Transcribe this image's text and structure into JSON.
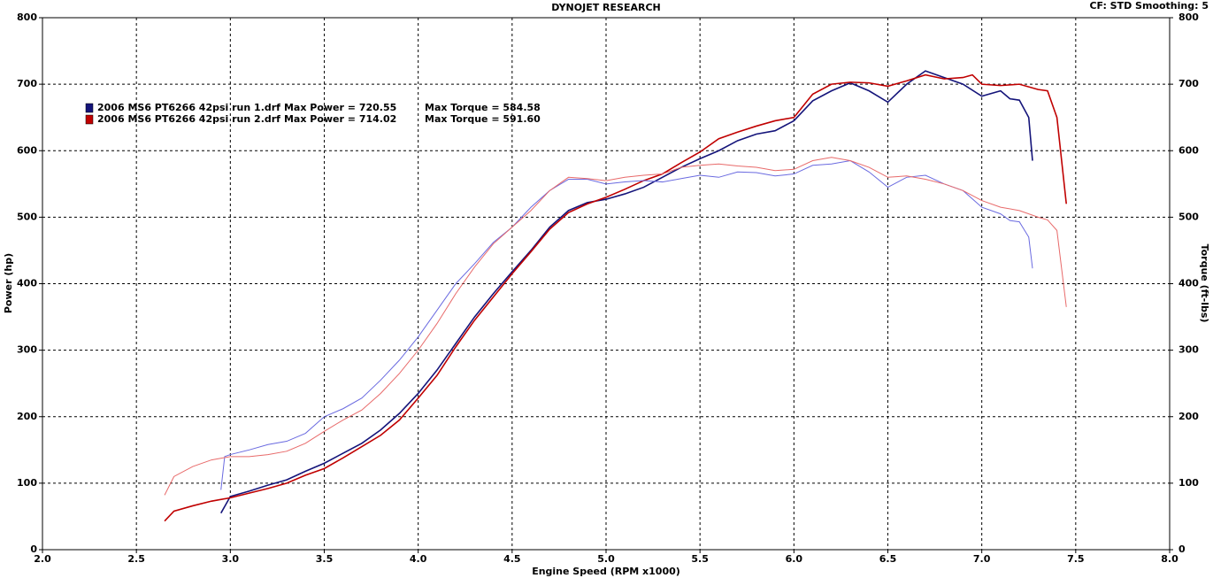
{
  "chart_data": {
    "type": "line",
    "title": "DYNOJET RESEARCH",
    "subtitle": "CF: STD  Smoothing: 5",
    "x_label": "Engine Speed (RPM x1000)",
    "y_label": "Power (hp)",
    "y2_label": "Torque (ft-lbs)",
    "xlim": [
      2,
      8
    ],
    "xticks": [
      {
        "value": 2,
        "label": "2.0"
      },
      2.5,
      {
        "value": 3,
        "label": "3.0"
      },
      3.5,
      {
        "value": 4,
        "label": "4.0"
      },
      4.5,
      {
        "value": 5,
        "label": "5.0"
      },
      5.5,
      {
        "value": 6,
        "label": "6.0"
      },
      6.5,
      {
        "value": 7,
        "label": "7.0"
      },
      7.5,
      {
        "value": 8,
        "label": "8.0"
      }
    ],
    "ylim": [
      0,
      800
    ],
    "yticks": [
      0,
      100,
      200,
      300,
      400,
      500,
      600,
      700,
      800
    ],
    "y2lim": [
      0,
      800
    ],
    "y2ticks": [
      0,
      100,
      200,
      300,
      400,
      500,
      600,
      700,
      800
    ],
    "grid": true,
    "series": [
      {
        "name": "2006 MS6 PT6266 42psi run 1.drf",
        "max_power": "Max Power = 720.55",
        "max_torque": "Max Torque = 584.58",
        "color": "#14147a",
        "x": [
          2.95,
          3.0,
          3.1,
          3.2,
          3.3,
          3.4,
          3.5,
          3.6,
          3.7,
          3.8,
          3.9,
          4.0,
          4.1,
          4.2,
          4.3,
          4.4,
          4.5,
          4.6,
          4.7,
          4.8,
          4.9,
          5.0,
          5.1,
          5.2,
          5.3,
          5.4,
          5.5,
          5.6,
          5.7,
          5.8,
          5.9,
          6.0,
          6.1,
          6.2,
          6.3,
          6.4,
          6.5,
          6.6,
          6.7,
          6.8,
          6.9,
          7.0,
          7.1,
          7.15,
          7.2,
          7.25,
          7.27
        ],
        "values": [
          55,
          80,
          88,
          97,
          105,
          118,
          130,
          145,
          160,
          180,
          205,
          235,
          270,
          310,
          350,
          385,
          418,
          450,
          485,
          510,
          522,
          527,
          535,
          545,
          560,
          575,
          588,
          600,
          615,
          625,
          630,
          645,
          675,
          690,
          702,
          690,
          673,
          700,
          720,
          710,
          700,
          682,
          690,
          678,
          676,
          650,
          585
        ]
      },
      {
        "name": "2006 MS6 PT6266 42psi run 2.drf",
        "max_power": "Max Power = 714.02",
        "max_torque": "Max Torque = 591.60",
        "color": "#c00000",
        "x": [
          2.65,
          2.7,
          2.8,
          2.9,
          3.0,
          3.1,
          3.2,
          3.3,
          3.4,
          3.5,
          3.6,
          3.7,
          3.8,
          3.9,
          4.0,
          4.1,
          4.2,
          4.3,
          4.4,
          4.5,
          4.6,
          4.7,
          4.8,
          4.9,
          5.0,
          5.1,
          5.2,
          5.3,
          5.4,
          5.5,
          5.6,
          5.7,
          5.8,
          5.9,
          6.0,
          6.1,
          6.2,
          6.3,
          6.4,
          6.5,
          6.6,
          6.7,
          6.8,
          6.9,
          6.95,
          7.0,
          7.1,
          7.2,
          7.3,
          7.35,
          7.4,
          7.45
        ],
        "values": [
          43,
          58,
          66,
          73,
          78,
          85,
          92,
          100,
          112,
          122,
          138,
          155,
          172,
          195,
          228,
          262,
          305,
          345,
          380,
          415,
          448,
          482,
          507,
          520,
          530,
          542,
          555,
          565,
          582,
          598,
          618,
          628,
          637,
          645,
          650,
          685,
          700,
          703,
          702,
          697,
          705,
          714,
          708,
          710,
          714,
          700,
          698,
          700,
          692,
          690,
          650,
          520
        ]
      },
      {
        "axis": "y2",
        "color": "#6a6ae0",
        "x": [
          2.95,
          2.97,
          3.0,
          3.1,
          3.2,
          3.3,
          3.4,
          3.5,
          3.6,
          3.7,
          3.8,
          3.9,
          4.0,
          4.1,
          4.2,
          4.3,
          4.4,
          4.5,
          4.6,
          4.7,
          4.8,
          4.9,
          5.0,
          5.1,
          5.2,
          5.3,
          5.4,
          5.5,
          5.6,
          5.7,
          5.8,
          5.9,
          6.0,
          6.1,
          6.2,
          6.3,
          6.4,
          6.5,
          6.6,
          6.7,
          6.8,
          6.9,
          7.0,
          7.1,
          7.15,
          7.2,
          7.25,
          7.27
        ],
        "values": [
          90,
          140,
          143,
          150,
          158,
          163,
          175,
          200,
          212,
          228,
          255,
          285,
          320,
          360,
          400,
          430,
          462,
          485,
          515,
          540,
          557,
          557,
          550,
          553,
          555,
          553,
          558,
          563,
          560,
          568,
          567,
          562,
          565,
          578,
          580,
          585,
          568,
          545,
          560,
          563,
          550,
          540,
          515,
          505,
          495,
          493,
          470,
          423
        ]
      },
      {
        "axis": "y2",
        "color": "#e86a6a",
        "x": [
          2.65,
          2.7,
          2.8,
          2.9,
          3.0,
          3.1,
          3.2,
          3.3,
          3.4,
          3.5,
          3.6,
          3.7,
          3.8,
          3.9,
          4.0,
          4.1,
          4.2,
          4.3,
          4.4,
          4.5,
          4.6,
          4.7,
          4.8,
          4.9,
          5.0,
          5.1,
          5.2,
          5.3,
          5.4,
          5.5,
          5.6,
          5.7,
          5.8,
          5.9,
          6.0,
          6.1,
          6.2,
          6.3,
          6.4,
          6.5,
          6.6,
          6.7,
          6.8,
          6.9,
          7.0,
          7.1,
          7.2,
          7.3,
          7.35,
          7.4,
          7.45
        ],
        "values": [
          82,
          110,
          125,
          135,
          140,
          140,
          143,
          148,
          160,
          178,
          195,
          210,
          235,
          265,
          300,
          340,
          385,
          425,
          460,
          485,
          510,
          540,
          560,
          558,
          555,
          560,
          563,
          565,
          575,
          578,
          580,
          577,
          575,
          570,
          572,
          585,
          590,
          585,
          575,
          560,
          562,
          557,
          550,
          540,
          525,
          515,
          510,
          500,
          496,
          480,
          365
        ]
      }
    ]
  }
}
